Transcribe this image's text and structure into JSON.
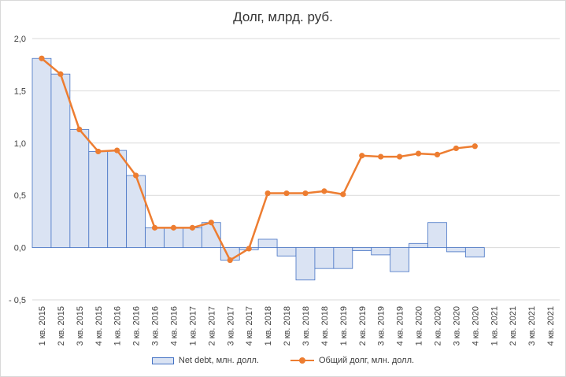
{
  "chart_data": {
    "type": "bar+line",
    "title": "Долг, млрд. руб.",
    "ylim": [
      -0.5,
      2.0
    ],
    "yticks": [
      "2,0",
      "1,5",
      "1,0",
      "0,5",
      "0,0",
      "- 0,5"
    ],
    "grid": true,
    "legend_position": "bottom",
    "categories": [
      "1 кв. 2015",
      "2 кв. 2015",
      "3 кв. 2015",
      "4 кв. 2015",
      "1 кв. 2016",
      "2 кв. 2016",
      "3 кв. 2016",
      "4 кв. 2016",
      "1 кв. 2017",
      "2 кв. 2017",
      "3 кв. 2017",
      "4 кв. 2017",
      "1 кв. 2018",
      "2 кв. 2018",
      "3 кв. 2018",
      "4 кв. 2018",
      "1 кв. 2019",
      "2 кв. 2019",
      "3 кв. 2019",
      "4 кв. 2019",
      "1 кв. 2020",
      "2 кв. 2020",
      "3 кв. 2020",
      "4 кв. 2020",
      "1 кв. 2021",
      "2 кв. 2021",
      "3 кв. 2021",
      "4 кв. 2021"
    ],
    "series": [
      {
        "name": "Net debt, млн. долл.",
        "kind": "bar",
        "color": "#dae3f3",
        "edge_color": "#4472c4",
        "values": [
          1.81,
          1.66,
          1.13,
          0.92,
          0.93,
          0.69,
          0.19,
          0.19,
          0.19,
          0.24,
          -0.12,
          -0.02,
          0.08,
          -0.08,
          -0.31,
          -0.2,
          -0.2,
          -0.03,
          -0.07,
          -0.23,
          0.04,
          0.24,
          -0.04,
          -0.09,
          null,
          null,
          null,
          null
        ]
      },
      {
        "name": "Общий долг, млн. долл.",
        "kind": "line",
        "color": "#ed7d31",
        "values": [
          1.81,
          1.66,
          1.13,
          0.92,
          0.93,
          0.69,
          0.19,
          0.19,
          0.19,
          0.24,
          -0.12,
          -0.01,
          0.52,
          0.52,
          0.52,
          0.54,
          0.51,
          0.88,
          0.87,
          0.87,
          0.9,
          0.89,
          0.95,
          0.97,
          null,
          null,
          null,
          null
        ]
      }
    ]
  }
}
